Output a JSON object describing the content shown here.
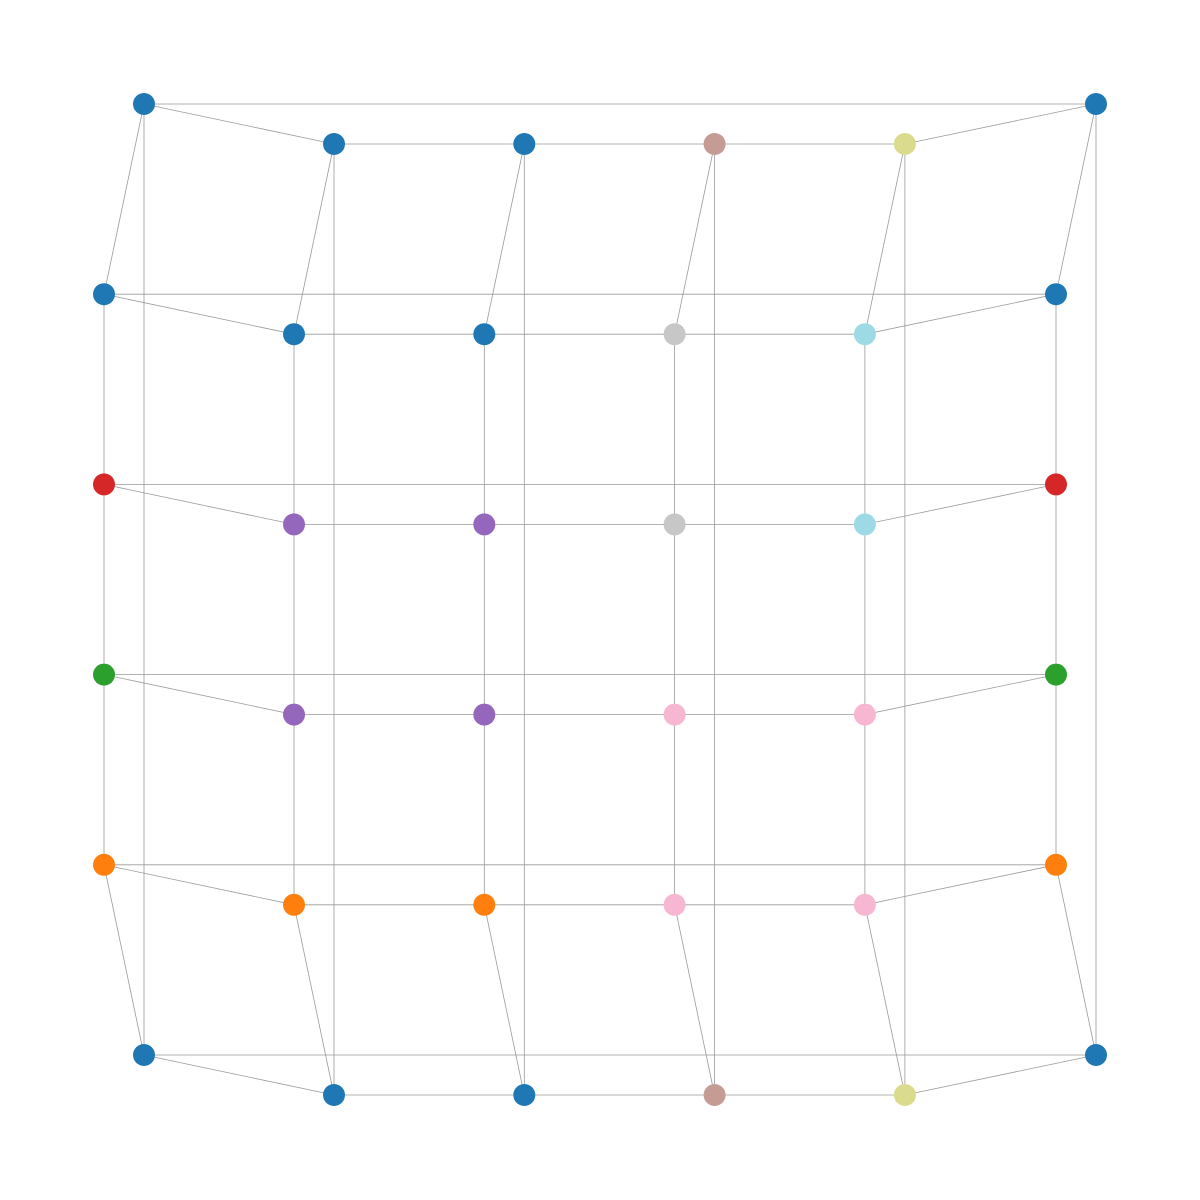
{
  "graph": {
    "rings": [
      {
        "nodes": [
          {
            "color": "#1f77b4"
          },
          {
            "color": "#1f77b4"
          },
          {
            "color": "#1f77b4"
          },
          {
            "color": "#c49c94"
          },
          {
            "color": "#dbdb8d"
          },
          {
            "color": "#1f77b4"
          }
        ]
      },
      {
        "nodes": [
          {
            "color": "#1f77b4"
          },
          {
            "color": "#1f77b4"
          },
          {
            "color": "#1f77b4"
          },
          {
            "color": "#c7c7c7"
          },
          {
            "color": "#9edae5"
          },
          {
            "color": "#1f77b4"
          }
        ]
      },
      {
        "nodes": [
          {
            "color": "#d62728"
          },
          {
            "color": "#9467bd"
          },
          {
            "color": "#9467bd"
          },
          {
            "color": "#c7c7c7"
          },
          {
            "color": "#9edae5"
          },
          {
            "color": "#d62728"
          }
        ]
      },
      {
        "nodes": [
          {
            "color": "#2ca02c"
          },
          {
            "color": "#9467bd"
          },
          {
            "color": "#9467bd"
          },
          {
            "color": "#f7b6d2"
          },
          {
            "color": "#f7b6d2"
          },
          {
            "color": "#2ca02c"
          }
        ]
      },
      {
        "nodes": [
          {
            "color": "#ff7f0e"
          },
          {
            "color": "#ff7f0e"
          },
          {
            "color": "#ff7f0e"
          },
          {
            "color": "#f7b6d2"
          },
          {
            "color": "#f7b6d2"
          },
          {
            "color": "#ff7f0e"
          }
        ]
      },
      {
        "nodes": [
          {
            "color": "#1f77b4"
          },
          {
            "color": "#1f77b4"
          },
          {
            "color": "#1f77b4"
          },
          {
            "color": "#c49c94"
          },
          {
            "color": "#dbdb8d"
          },
          {
            "color": "#1f77b4"
          }
        ]
      }
    ]
  }
}
